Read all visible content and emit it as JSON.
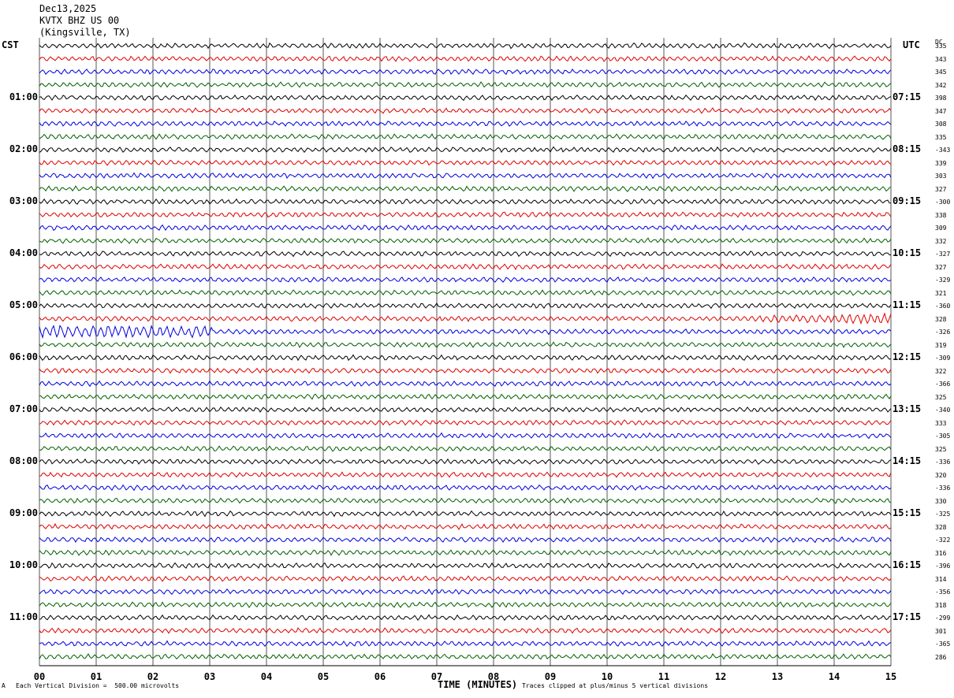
{
  "header": {
    "date": "Dec13,2025",
    "station": "KVTX BHZ US 00",
    "location": "(Kingsville, TX)"
  },
  "left_timezone": "CST",
  "right_timezone": "UTC",
  "dc_header": "DC",
  "footer": {
    "scale_note": "Each Vertical Division =  500.00 microvolts",
    "clip_note": "Traces clipped at plus/minus 5 vertical divisions",
    "corner_mark": "A"
  },
  "chart_data": {
    "type": "line",
    "xlabel": "TIME (MINUTES)",
    "xlim": [
      0,
      15
    ],
    "x_ticks": [
      "00",
      "01",
      "02",
      "03",
      "04",
      "05",
      "06",
      "07",
      "08",
      "09",
      "10",
      "11",
      "12",
      "13",
      "14",
      "15"
    ],
    "grid": "vertical lines every minute",
    "trace_colors": [
      "#000000",
      "#e00000",
      "#0000e0",
      "#006000"
    ],
    "left_hour_labels": [
      "01:00",
      "02:00",
      "03:00",
      "04:00",
      "05:00",
      "06:00",
      "07:00",
      "08:00",
      "09:00",
      "10:00",
      "11:00"
    ],
    "right_hour_labels": [
      "07:15",
      "08:15",
      "09:15",
      "10:15",
      "11:15",
      "12:15",
      "13:15",
      "14:15",
      "15:15",
      "16:15",
      "17:15"
    ],
    "dc_values": [
      "335",
      "343",
      "345",
      "342",
      "398",
      "347",
      "308",
      "335",
      "-343",
      "339",
      "303",
      "327",
      "-300",
      "338",
      "309",
      "332",
      "-327",
      "327",
      "-329",
      "321",
      "-360",
      "328",
      "-326",
      "319",
      "-309",
      "322",
      "-366",
      "325",
      "-340",
      "333",
      "-305",
      "325",
      "-336",
      "320",
      "-336",
      "330",
      "-325",
      "328",
      "-322",
      "316",
      "-396",
      "314",
      "-356",
      "318",
      "-299",
      "301",
      "-365",
      "286"
    ],
    "event_notes": [
      {
        "trace": 22,
        "note": "higher amplitude burst near minutes 0-2"
      },
      {
        "trace": 21,
        "note": "higher amplitude near minutes 12-15"
      }
    ]
  }
}
